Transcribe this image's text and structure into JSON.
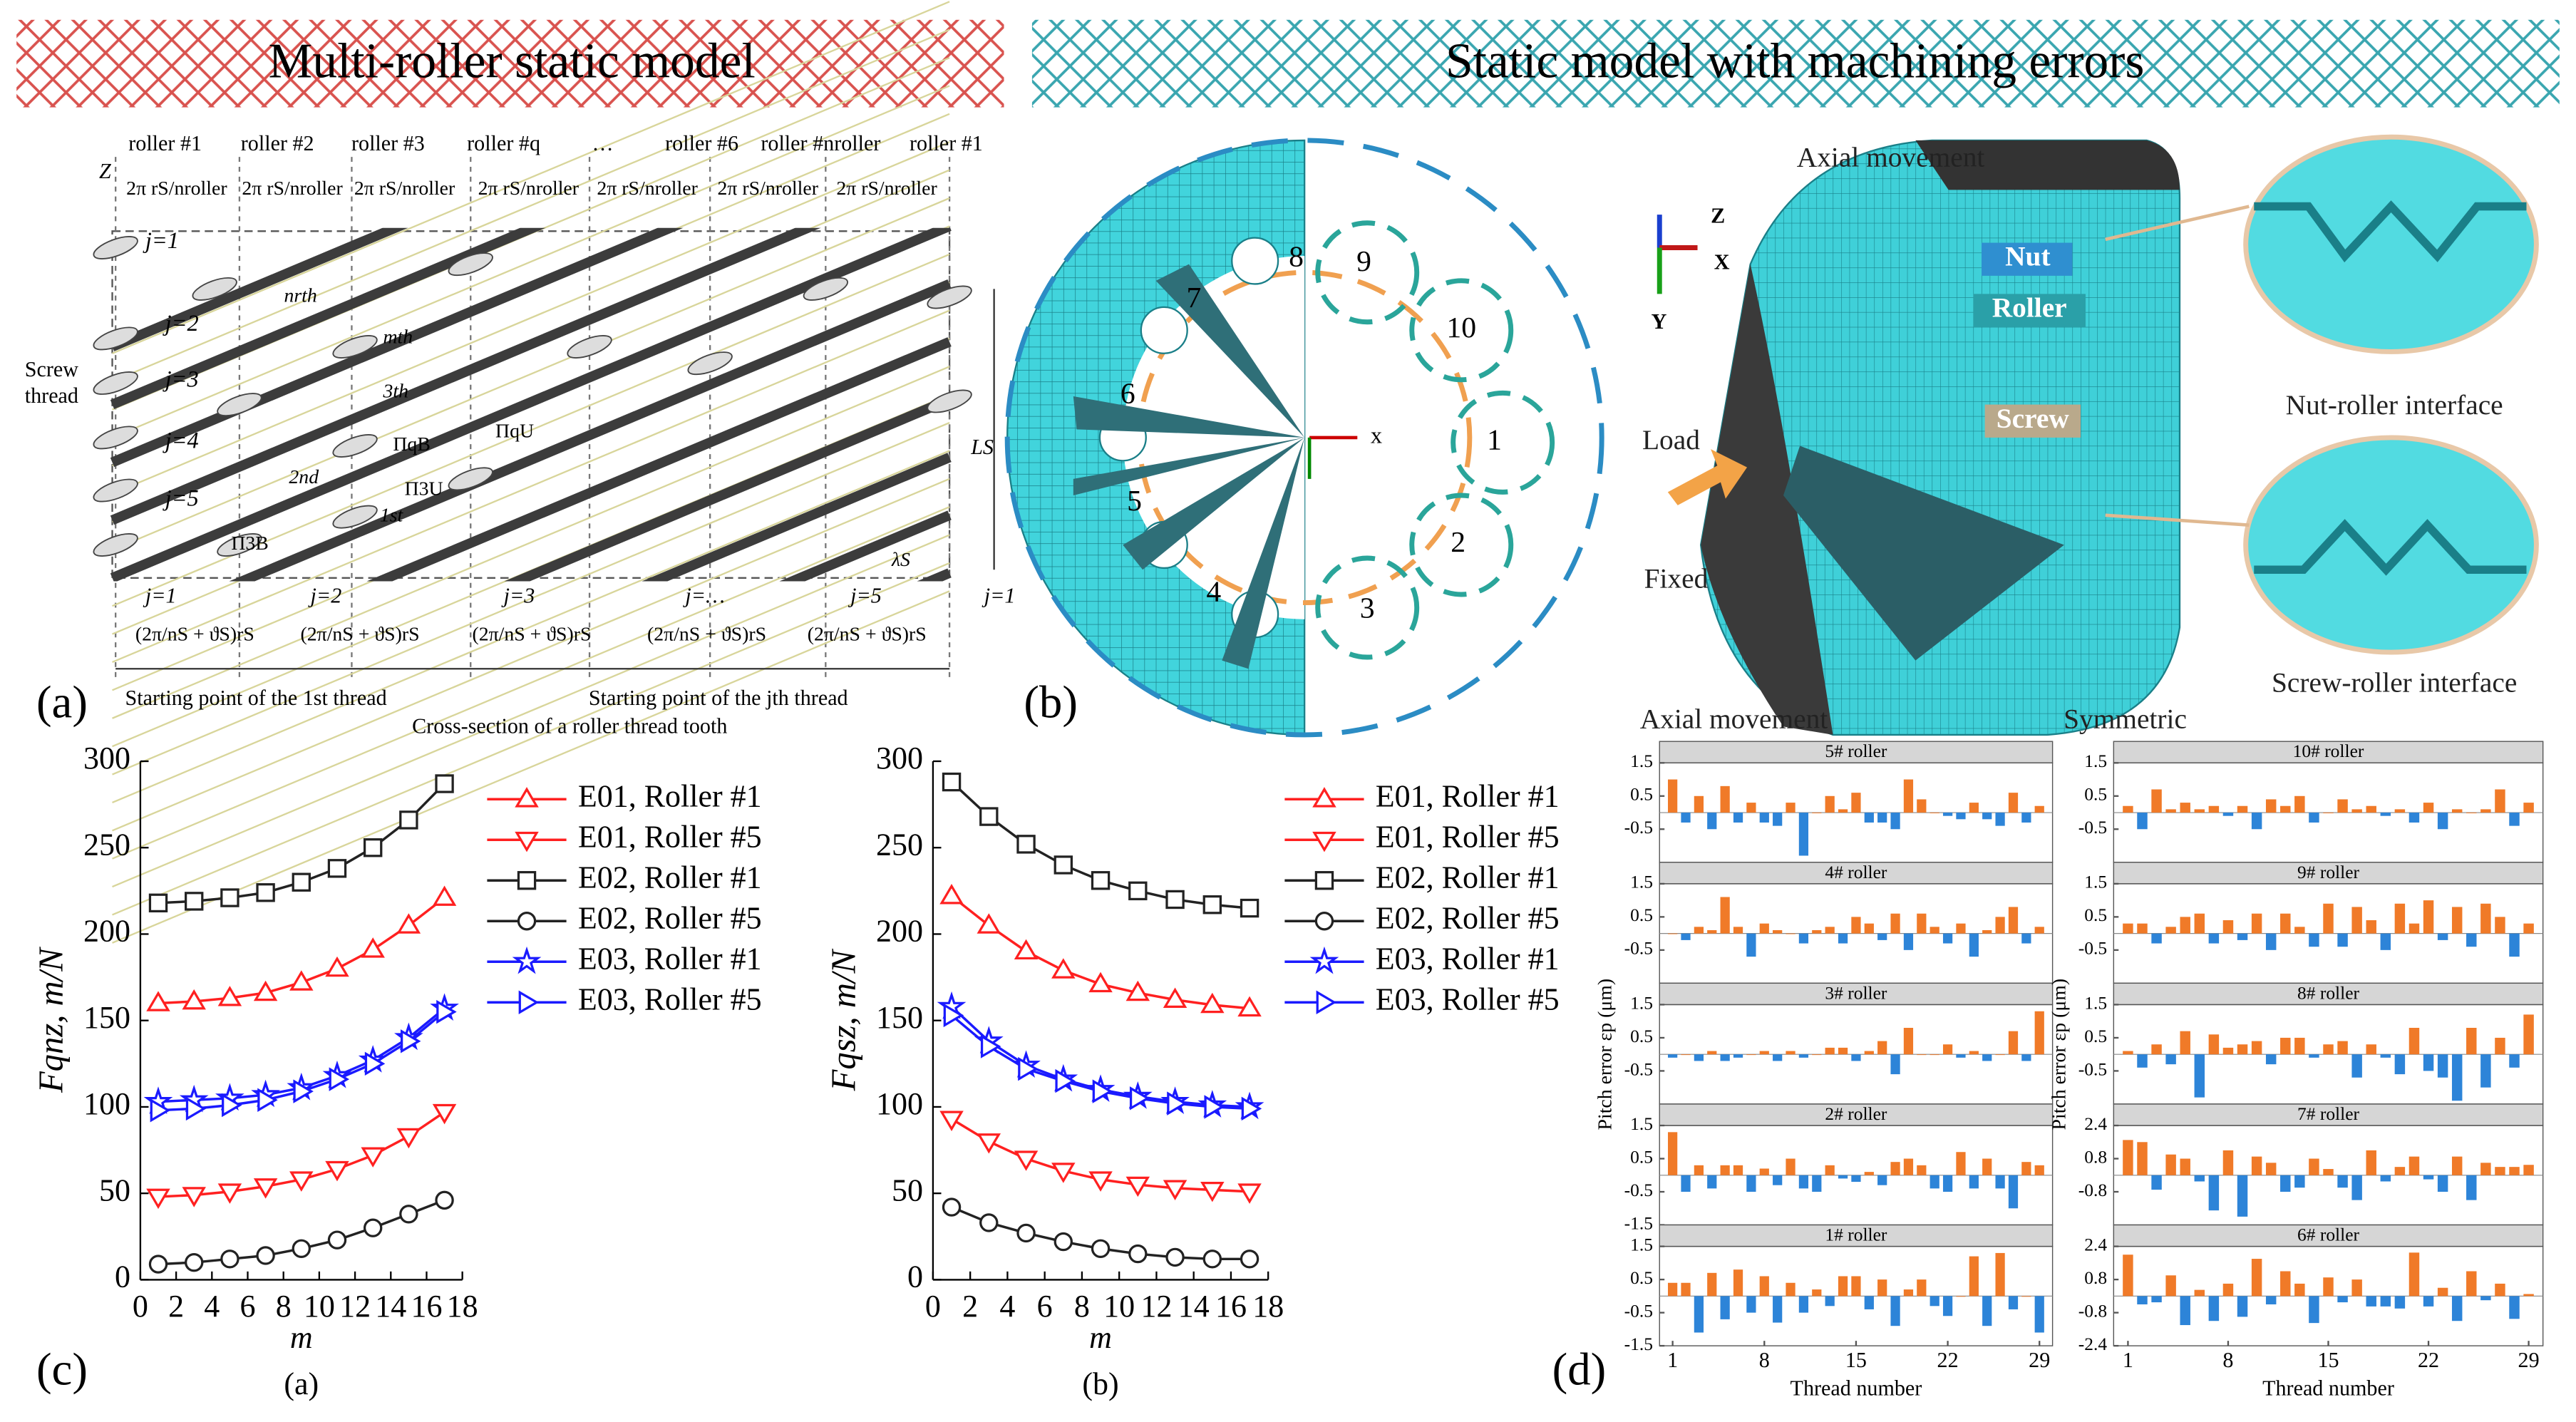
{
  "headers": [
    "Multi-roller static model",
    "Static model with machining errors"
  ],
  "panel_labels": [
    "(a)",
    "(b)",
    "(c)",
    "(d)"
  ],
  "diagram_a": {
    "roller_labels": [
      "roller #1",
      "roller #2",
      "roller #3",
      "roller #q",
      "…",
      "roller #6",
      "roller #nroller",
      "roller #1"
    ],
    "pitch_label": "2π rS/nroller",
    "z_label": "Z",
    "j_labels": [
      "j=1",
      "j=2",
      "j=3",
      "j=4",
      "j=5"
    ],
    "screw_thread": [
      "Screw",
      "thread"
    ],
    "thread_labels": [
      "nrth",
      "mth",
      "3th",
      "2nd",
      "1st"
    ],
    "pi_labels": [
      "ΠqU",
      "ΠqB",
      "Π3U",
      "Π3B"
    ],
    "ls_label": "LS",
    "lambda_label": "λS",
    "bottom_j": [
      "j=1",
      "j=2",
      "j=3",
      "j=…",
      "j=5",
      "j=1"
    ],
    "offset_label": "(2π/nS + ϑS)rS",
    "notes": [
      "Starting point of the 1st thread",
      "Starting point of the jth thread",
      "Cross-section of a roller thread tooth"
    ]
  },
  "diagram_b": {
    "numbers": [
      "1",
      "2",
      "3",
      "4",
      "5",
      "6",
      "7",
      "8",
      "9",
      "10"
    ],
    "axis": "x"
  },
  "model": {
    "labels": [
      "Axial movement",
      "Nut",
      "Roller",
      "Screw",
      "Load",
      "Fixed",
      "Axial movement",
      "Symmetric",
      "Nut-roller interface",
      "Screw-roller interface"
    ],
    "axes": [
      "Z",
      "X",
      "Y"
    ]
  },
  "chart_data": [
    {
      "type": "line",
      "caption": "(a)",
      "xlabel": "m",
      "ylabel": "Fqnz, m/N",
      "x": [
        1,
        3,
        5,
        7,
        9,
        11,
        13,
        15,
        17
      ],
      "xlim": [
        0,
        18
      ],
      "xticks": [
        0,
        2,
        4,
        6,
        8,
        10,
        12,
        14,
        16,
        18
      ],
      "ylim": [
        0,
        300
      ],
      "yticks": [
        0,
        50,
        100,
        150,
        200,
        250,
        300
      ],
      "series": [
        {
          "name": "E01, Roller #1",
          "color": "#ff2020",
          "marker": "triangle-up",
          "values": [
            160,
            161,
            163,
            166,
            172,
            180,
            191,
            205,
            221
          ]
        },
        {
          "name": "E01, Roller #5",
          "color": "#ff2020",
          "marker": "triangle-down",
          "values": [
            48,
            49,
            51,
            54,
            58,
            64,
            72,
            83,
            97
          ]
        },
        {
          "name": "E02, Roller #1",
          "color": "#222222",
          "marker": "square",
          "values": [
            218,
            219,
            221,
            224,
            230,
            238,
            250,
            266,
            287
          ]
        },
        {
          "name": "E02, Roller #5",
          "color": "#222222",
          "marker": "circle",
          "values": [
            9,
            10,
            12,
            14,
            18,
            23,
            30,
            38,
            46
          ]
        },
        {
          "name": "E03, Roller #1",
          "color": "#1a1aff",
          "marker": "star",
          "values": [
            103,
            104,
            105,
            107,
            111,
            118,
            127,
            140,
            157
          ]
        },
        {
          "name": "E03, Roller #5",
          "color": "#1a1aff",
          "marker": "triangle-right",
          "values": [
            98,
            99,
            101,
            104,
            109,
            116,
            125,
            138,
            155
          ]
        }
      ]
    },
    {
      "type": "line",
      "caption": "(b)",
      "xlabel": "m",
      "ylabel": "Fqsz, m/N",
      "x": [
        1,
        3,
        5,
        7,
        9,
        11,
        13,
        15,
        17
      ],
      "xlim": [
        0,
        18
      ],
      "xticks": [
        0,
        2,
        4,
        6,
        8,
        10,
        12,
        14,
        16,
        18
      ],
      "ylim": [
        0,
        300
      ],
      "yticks": [
        0,
        50,
        100,
        150,
        200,
        250,
        300
      ],
      "series": [
        {
          "name": "E01, Roller #1",
          "color": "#ff2020",
          "marker": "triangle-up",
          "values": [
            222,
            205,
            190,
            179,
            171,
            166,
            162,
            159,
            157
          ]
        },
        {
          "name": "E01, Roller #5",
          "color": "#ff2020",
          "marker": "triangle-down",
          "values": [
            93,
            80,
            70,
            63,
            58,
            55,
            53,
            52,
            51
          ]
        },
        {
          "name": "E02, Roller #1",
          "color": "#222222",
          "marker": "square",
          "values": [
            288,
            268,
            252,
            240,
            231,
            225,
            220,
            217,
            215
          ]
        },
        {
          "name": "E02, Roller #5",
          "color": "#222222",
          "marker": "circle",
          "values": [
            42,
            33,
            27,
            22,
            18,
            15,
            13,
            12,
            12
          ]
        },
        {
          "name": "E03, Roller #1",
          "color": "#1a1aff",
          "marker": "star",
          "values": [
            158,
            138,
            124,
            116,
            110,
            106,
            103,
            101,
            100
          ]
        },
        {
          "name": "E03, Roller #5",
          "color": "#1a1aff",
          "marker": "triangle-right",
          "values": [
            153,
            135,
            122,
            115,
            109,
            105,
            102,
            100,
            99
          ]
        }
      ]
    },
    {
      "type": "bar",
      "title": "5# roller",
      "xlim": [
        0,
        30
      ],
      "ylim": [
        -1.5,
        1.5
      ],
      "yticks": [
        1.5,
        0.5,
        -0.5
      ],
      "color_positive": "#f07a28",
      "color_negative": "#2d84d8",
      "values": [
        1.0,
        -0.3,
        0.5,
        -0.5,
        0.8,
        -0.3,
        0.3,
        -0.3,
        -0.4,
        0.3,
        -1.3,
        0.0,
        0.5,
        0.1,
        0.6,
        -0.3,
        -0.3,
        -0.5,
        1.0,
        0.4,
        0.0,
        -0.1,
        -0.2,
        0.3,
        -0.2,
        -0.4,
        0.6,
        -0.3,
        0.2
      ]
    },
    {
      "type": "bar",
      "title": "4# roller",
      "xlim": [
        0,
        30
      ],
      "ylim": [
        -1.5,
        1.5
      ],
      "yticks": [
        1.5,
        0.5,
        -0.5
      ],
      "color_positive": "#f07a28",
      "color_negative": "#2d84d8",
      "values": [
        0.0,
        -0.2,
        0.2,
        0.1,
        1.1,
        0.2,
        -0.7,
        0.3,
        0.1,
        0.0,
        -0.3,
        0.1,
        0.2,
        -0.3,
        0.5,
        0.3,
        -0.2,
        0.6,
        -0.5,
        0.6,
        0.2,
        -0.3,
        0.3,
        -0.7,
        0.1,
        0.5,
        0.8,
        -0.3,
        0.2
      ]
    },
    {
      "type": "bar",
      "title": "3# roller",
      "ylabel": "Pitch error εp (μm)",
      "xlim": [
        0,
        30
      ],
      "ylim": [
        -1.5,
        1.5
      ],
      "yticks": [
        1.5,
        0.5,
        -0.5
      ],
      "color_positive": "#f07a28",
      "color_negative": "#2d84d8",
      "values": [
        -0.1,
        0.0,
        -0.2,
        0.1,
        -0.2,
        -0.1,
        0.0,
        0.1,
        -0.2,
        0.1,
        -0.1,
        0.0,
        0.2,
        0.2,
        -0.2,
        0.1,
        0.4,
        -0.6,
        0.8,
        0.0,
        0.0,
        0.3,
        -0.1,
        0.1,
        -0.2,
        0.0,
        0.7,
        -0.2,
        1.3
      ]
    },
    {
      "type": "bar",
      "title": "2# roller",
      "xlim": [
        0,
        30
      ],
      "ylim": [
        -1.5,
        1.5
      ],
      "yticks": [
        1.5,
        0.5,
        -0.5,
        -1.5
      ],
      "color_positive": "#f07a28",
      "color_negative": "#2d84d8",
      "values": [
        1.3,
        -0.5,
        0.3,
        -0.4,
        0.3,
        0.3,
        -0.5,
        0.2,
        -0.3,
        0.5,
        -0.4,
        -0.5,
        0.3,
        -0.1,
        -0.2,
        0.1,
        -0.3,
        0.4,
        0.5,
        0.3,
        -0.4,
        -0.5,
        0.7,
        -0.4,
        0.5,
        -0.4,
        -1.0,
        0.4,
        0.3
      ]
    },
    {
      "type": "bar",
      "title": "1# roller",
      "xlabel": "Thread number",
      "xlim": [
        0,
        30
      ],
      "xticks": [
        1,
        8,
        15,
        22,
        29
      ],
      "ylim": [
        -1.5,
        1.5
      ],
      "yticks": [
        1.5,
        0.5,
        -0.5,
        -1.5
      ],
      "color_positive": "#f07a28",
      "color_negative": "#2d84d8",
      "values": [
        0.4,
        0.4,
        -1.1,
        0.7,
        -0.7,
        0.8,
        -0.5,
        0.6,
        -0.8,
        0.4,
        -0.5,
        0.2,
        -0.3,
        0.6,
        0.6,
        -0.4,
        0.5,
        -0.9,
        0.2,
        0.5,
        -0.3,
        -0.6,
        0.0,
        1.2,
        -0.9,
        1.3,
        -0.4,
        0.0,
        -1.1
      ]
    },
    {
      "type": "bar",
      "title": "10# roller",
      "xlim": [
        0,
        30
      ],
      "ylim": [
        -1.5,
        1.5
      ],
      "yticks": [
        1.5,
        0.5,
        -0.5
      ],
      "color_positive": "#f07a28",
      "color_negative": "#2d84d8",
      "values": [
        0.2,
        -0.5,
        0.7,
        0.1,
        0.3,
        0.1,
        0.2,
        -0.1,
        0.2,
        -0.5,
        0.4,
        0.2,
        0.5,
        -0.3,
        0.0,
        0.4,
        0.1,
        0.2,
        -0.1,
        0.1,
        -0.3,
        0.3,
        -0.5,
        0.1,
        0.0,
        0.1,
        0.7,
        -0.4,
        0.3
      ]
    },
    {
      "type": "bar",
      "title": "9# roller",
      "xlim": [
        0,
        30
      ],
      "ylim": [
        -1.5,
        1.5
      ],
      "yticks": [
        1.5,
        0.5,
        -0.5
      ],
      "color_positive": "#f07a28",
      "color_negative": "#2d84d8",
      "values": [
        0.3,
        0.3,
        -0.3,
        0.2,
        0.5,
        0.6,
        -0.3,
        0.4,
        -0.2,
        0.6,
        -0.5,
        0.6,
        0.2,
        -0.4,
        0.9,
        -0.4,
        0.8,
        0.4,
        -0.5,
        0.9,
        0.3,
        1.0,
        -0.2,
        0.8,
        -0.4,
        0.9,
        0.5,
        -0.7,
        0.3
      ]
    },
    {
      "type": "bar",
      "title": "8# roller",
      "ylabel": "Pitch error εp (μm)",
      "xlim": [
        0,
        30
      ],
      "ylim": [
        -1.5,
        1.5
      ],
      "yticks": [
        1.5,
        0.5,
        -0.5
      ],
      "color_positive": "#f07a28",
      "color_negative": "#2d84d8",
      "values": [
        0.1,
        -0.4,
        0.3,
        -0.3,
        0.7,
        -1.3,
        0.6,
        0.2,
        0.3,
        0.4,
        -0.3,
        0.5,
        0.5,
        -0.1,
        0.3,
        0.4,
        -0.7,
        0.3,
        -0.1,
        -0.6,
        0.8,
        -0.5,
        -0.7,
        -1.4,
        0.8,
        -1.0,
        0.5,
        -0.4,
        1.2
      ]
    },
    {
      "type": "bar",
      "title": "7# roller",
      "xlim": [
        0,
        30
      ],
      "ylim": [
        -2.4,
        2.4
      ],
      "yticks": [
        2.4,
        0.8,
        -0.8
      ],
      "color_positive": "#f07a28",
      "color_negative": "#2d84d8",
      "values": [
        1.7,
        1.6,
        -0.7,
        1.0,
        0.8,
        -0.3,
        -1.7,
        1.2,
        -2.0,
        0.9,
        0.6,
        -0.8,
        -0.6,
        0.8,
        0.3,
        -0.6,
        -1.2,
        1.2,
        -0.3,
        0.4,
        0.9,
        -0.2,
        -0.8,
        0.9,
        -1.2,
        0.6,
        0.4,
        0.4,
        0.5
      ]
    },
    {
      "type": "bar",
      "title": "6# roller",
      "xlabel": "Thread number",
      "xlim": [
        0,
        30
      ],
      "xticks": [
        1,
        8,
        15,
        22,
        29
      ],
      "ylim": [
        -2.4,
        2.4
      ],
      "yticks": [
        2.4,
        0.8,
        -0.8,
        -2.4
      ],
      "color_positive": "#f07a28",
      "color_negative": "#2d84d8",
      "values": [
        2.0,
        -0.4,
        -0.3,
        1.0,
        -1.4,
        0.3,
        -1.2,
        0.6,
        -1.0,
        1.8,
        -0.4,
        1.2,
        0.6,
        -1.3,
        0.9,
        -0.3,
        0.8,
        -0.5,
        -0.5,
        -0.6,
        2.1,
        -0.5,
        0.4,
        -1.2,
        1.2,
        -0.2,
        0.6,
        -1.1,
        0.1
      ]
    }
  ]
}
